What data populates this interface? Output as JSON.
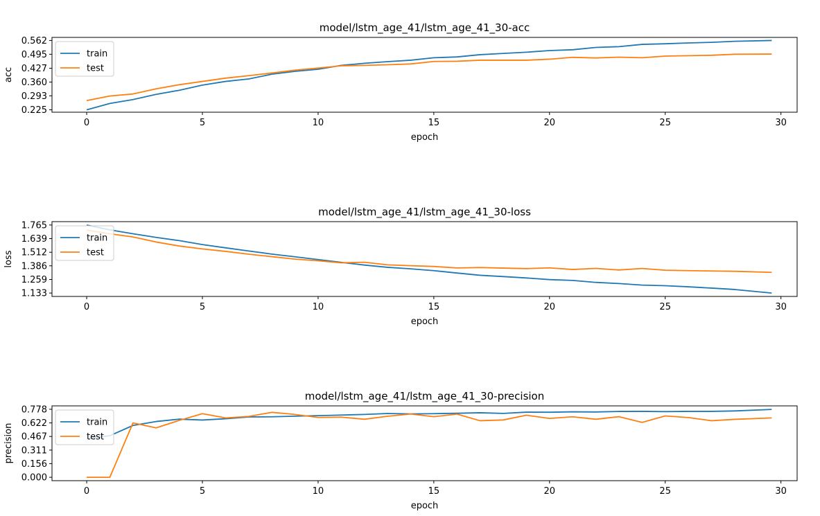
{
  "chart_data": [
    {
      "type": "line",
      "title": "model/lstm_age_41/lstm_age_41_30-acc",
      "xlabel": "epoch",
      "ylabel": "acc",
      "xlim": [
        -1.5,
        30.7
      ],
      "ylim": [
        0.2134,
        0.5769
      ],
      "xticks": [
        0,
        5,
        10,
        15,
        20,
        25,
        30
      ],
      "yticks": [
        "0.225",
        "0.293",
        "0.360",
        "0.427",
        "0.495",
        "0.562"
      ],
      "legend": "top-left",
      "series": [
        {
          "name": "train",
          "color": "#1f77b4",
          "x": [
            0,
            1,
            2,
            3,
            4,
            5,
            6,
            7,
            8,
            9,
            10,
            11,
            12,
            13,
            14,
            15,
            16,
            17,
            18,
            19,
            20,
            21,
            22,
            23,
            24,
            25,
            26,
            27,
            28,
            29.6
          ],
          "y": [
            0.225,
            0.256,
            0.275,
            0.3,
            0.32,
            0.345,
            0.363,
            0.375,
            0.398,
            0.412,
            0.422,
            0.441,
            0.451,
            0.459,
            0.466,
            0.478,
            0.482,
            0.493,
            0.499,
            0.505,
            0.513,
            0.517,
            0.528,
            0.532,
            0.543,
            0.546,
            0.55,
            0.553,
            0.558,
            0.562
          ]
        },
        {
          "name": "test",
          "color": "#ff7f0e",
          "x": [
            0,
            1,
            2,
            3,
            4,
            5,
            6,
            7,
            8,
            9,
            10,
            11,
            12,
            13,
            14,
            15,
            16,
            17,
            18,
            19,
            20,
            21,
            22,
            23,
            24,
            25,
            26,
            27,
            28,
            29.6
          ],
          "y": [
            0.27,
            0.292,
            0.302,
            0.327,
            0.347,
            0.363,
            0.379,
            0.391,
            0.404,
            0.418,
            0.428,
            0.439,
            0.441,
            0.444,
            0.448,
            0.46,
            0.461,
            0.466,
            0.466,
            0.466,
            0.471,
            0.48,
            0.477,
            0.481,
            0.478,
            0.486,
            0.488,
            0.49,
            0.495,
            0.496
          ]
        }
      ]
    },
    {
      "type": "line",
      "title": "model/lstm_age_41/lstm_age_41_30-loss",
      "xlabel": "epoch",
      "ylabel": "loss",
      "xlim": [
        -1.5,
        30.7
      ],
      "ylim": [
        1.1014,
        1.7964
      ],
      "xticks": [
        0,
        5,
        10,
        15,
        20,
        25,
        30
      ],
      "yticks": [
        "1.133",
        "1.259",
        "1.386",
        "1.512",
        "1.639",
        "1.765"
      ],
      "legend": "top-left",
      "series": [
        {
          "name": "train",
          "color": "#1f77b4",
          "x": [
            0,
            1,
            2,
            3,
            4,
            5,
            6,
            7,
            8,
            9,
            10,
            11,
            12,
            13,
            14,
            15,
            16,
            17,
            18,
            19,
            20,
            21,
            22,
            23,
            24,
            25,
            26,
            27,
            28,
            29.6
          ],
          "y": [
            1.765,
            1.72,
            1.684,
            1.65,
            1.62,
            1.583,
            1.553,
            1.524,
            1.495,
            1.47,
            1.444,
            1.418,
            1.393,
            1.372,
            1.358,
            1.341,
            1.319,
            1.298,
            1.286,
            1.273,
            1.258,
            1.25,
            1.232,
            1.221,
            1.207,
            1.201,
            1.191,
            1.179,
            1.166,
            1.133
          ]
        },
        {
          "name": "test",
          "color": "#ff7f0e",
          "x": [
            0,
            1,
            2,
            3,
            4,
            5,
            6,
            7,
            8,
            9,
            10,
            11,
            12,
            13,
            14,
            15,
            16,
            17,
            18,
            19,
            20,
            21,
            22,
            23,
            24,
            25,
            26,
            27,
            28,
            29.6
          ],
          "y": [
            1.718,
            1.684,
            1.654,
            1.607,
            1.57,
            1.543,
            1.52,
            1.494,
            1.471,
            1.448,
            1.433,
            1.414,
            1.419,
            1.395,
            1.387,
            1.38,
            1.366,
            1.37,
            1.365,
            1.36,
            1.367,
            1.352,
            1.362,
            1.347,
            1.361,
            1.345,
            1.341,
            1.338,
            1.335,
            1.325
          ]
        }
      ]
    },
    {
      "type": "line",
      "title": "model/lstm_age_41/lstm_age_41_30-precision",
      "xlabel": "epoch",
      "ylabel": "precision",
      "xlim": [
        -1.5,
        30.7
      ],
      "ylim": [
        -0.0389,
        0.8169
      ],
      "xticks": [
        0,
        5,
        10,
        15,
        20,
        25,
        30
      ],
      "yticks": [
        "0.000",
        "0.156",
        "0.311",
        "0.467",
        "0.622",
        "0.778"
      ],
      "legend": "top-left",
      "series": [
        {
          "name": "train",
          "color": "#1f77b4",
          "x": [
            0,
            1,
            2,
            3,
            4,
            5,
            6,
            7,
            8,
            9,
            10,
            11,
            12,
            13,
            14,
            15,
            16,
            17,
            18,
            19,
            20,
            21,
            22,
            23,
            24,
            25,
            26,
            27,
            28,
            29.6
          ],
          "y": [
            0.44,
            0.476,
            0.593,
            0.638,
            0.665,
            0.655,
            0.67,
            0.69,
            0.692,
            0.699,
            0.705,
            0.712,
            0.719,
            0.73,
            0.725,
            0.728,
            0.732,
            0.738,
            0.731,
            0.745,
            0.744,
            0.749,
            0.747,
            0.753,
            0.754,
            0.751,
            0.754,
            0.754,
            0.759,
            0.776
          ]
        },
        {
          "name": "test",
          "color": "#ff7f0e",
          "x": [
            0,
            1,
            2,
            3,
            4,
            5,
            6,
            7,
            8,
            9,
            10,
            11,
            12,
            13,
            14,
            15,
            16,
            17,
            18,
            19,
            20,
            21,
            22,
            23,
            24,
            25,
            26,
            27,
            28,
            29.6
          ],
          "y": [
            0.0,
            0.0,
            0.622,
            0.565,
            0.651,
            0.728,
            0.679,
            0.696,
            0.743,
            0.719,
            0.684,
            0.688,
            0.664,
            0.698,
            0.724,
            0.693,
            0.723,
            0.647,
            0.656,
            0.71,
            0.673,
            0.692,
            0.664,
            0.693,
            0.628,
            0.702,
            0.683,
            0.647,
            0.663,
            0.679
          ]
        }
      ]
    }
  ]
}
